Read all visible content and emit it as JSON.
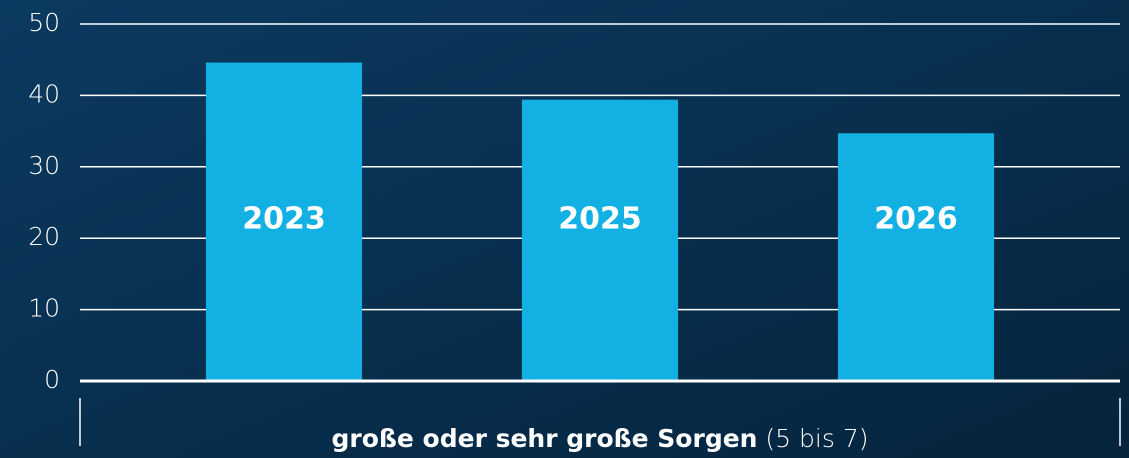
{
  "chart_data": {
    "type": "bar",
    "categories": [
      "2023",
      "2025",
      "2026"
    ],
    "values": [
      44.6,
      39.4,
      34.7
    ],
    "color": "#13b1e3",
    "ylim": [
      0,
      50
    ],
    "yticks": [
      0,
      10,
      20,
      30,
      40,
      50
    ],
    "grid": true,
    "x_label": "große oder sehr große Sorgen",
    "x_label_note": "(5 bis 7)"
  }
}
